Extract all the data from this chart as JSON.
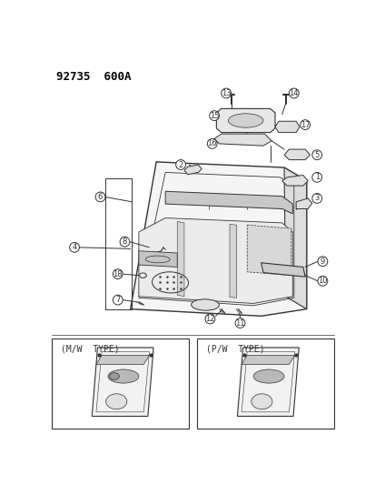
{
  "title": "92735  600A",
  "bg_color": "#ffffff",
  "lc": "#333333",
  "fig_width": 4.14,
  "fig_height": 5.33,
  "mw_label": "(M/W  TYPE)",
  "pw_label": "(P/W  TYPE)"
}
